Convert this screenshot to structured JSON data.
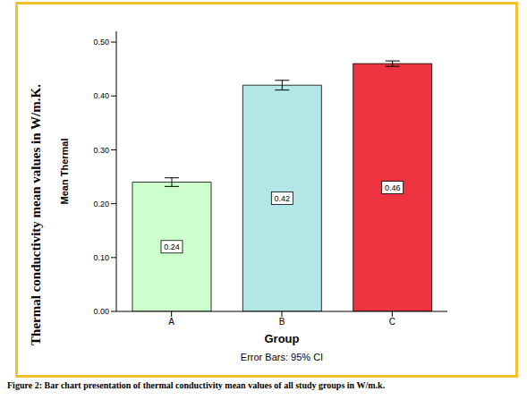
{
  "chart_data": {
    "type": "bar",
    "categories": [
      "A",
      "B",
      "C"
    ],
    "values": [
      0.24,
      0.42,
      0.46
    ],
    "error": [
      0.008,
      0.009,
      0.005
    ],
    "colors": [
      "#ccffcc",
      "#b3e6e6",
      "#ee3340"
    ],
    "ylim": [
      0,
      0.52
    ],
    "yticks": [
      {
        "value": 0,
        "label": "0.00"
      },
      {
        "value": 0.1,
        "label": "0.10"
      },
      {
        "value": 0.2,
        "label": "0.20"
      },
      {
        "value": 0.3,
        "label": "0.30"
      },
      {
        "value": 0.4,
        "label": "0.40"
      },
      {
        "value": 0.5,
        "label": "0.50"
      }
    ],
    "xlabel": "Group",
    "ylabel": "Mean Thermal",
    "annotation": "Error Bars: 95% CI",
    "side_label": "Thermal conductivity mean values in W/m.K.",
    "caption": "Figure 2: Bar chart presentation of thermal conductivity mean values of all study groups in W/m.k.",
    "data_labels": true,
    "grid": false
  }
}
